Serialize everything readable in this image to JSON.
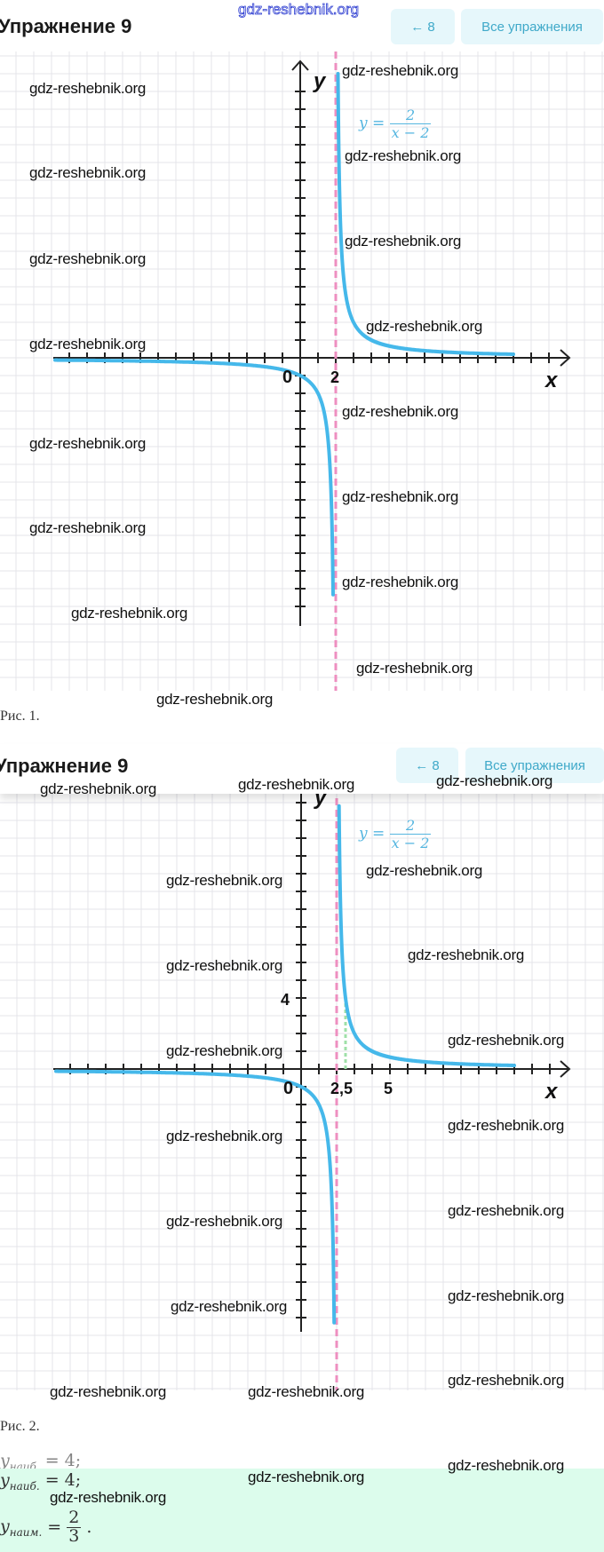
{
  "watermark": "gdz-reshebnik.org",
  "header": {
    "title": "Упражнение 9",
    "prev_label": "← 8",
    "all_label": "Все упражнения"
  },
  "figure1": {
    "caption": "Рис. 1.",
    "function_label": {
      "lhs": "y =",
      "num": "2",
      "den": "x − 2"
    },
    "x_axis_label": "x",
    "y_axis_label": "y",
    "origin_label": "0",
    "x_tick_labels": [
      "2"
    ],
    "asymptote_x": 2,
    "colors": {
      "curve": "#45b8ea",
      "asymptote": "#ee8fc0",
      "grid": "#e6e6ea",
      "axis": "#222222"
    }
  },
  "figure2": {
    "caption": "Рис. 2.",
    "function_label": {
      "lhs": "y =",
      "num": "2",
      "den": "x − 2"
    },
    "x_axis_label": "x",
    "y_axis_label": "y",
    "origin_label": "0",
    "x_tick_labels": [
      "2,5",
      "5"
    ],
    "y_tick_labels": [
      "4"
    ],
    "asymptote_x": 2,
    "highlight_x": 2.5,
    "colors": {
      "curve": "#45b8ea",
      "asymptote": "#ee8fc0",
      "highlight": "#9fe0a8"
    }
  },
  "answer": {
    "max_label": "y",
    "max_sub": "наиб.",
    "max_value": "= 4;",
    "min_label": "y",
    "min_sub": "наим.",
    "min_eq": "=",
    "min_num": "2",
    "min_den": "3",
    "min_end": "."
  },
  "chart_data": [
    {
      "type": "line",
      "title": "y = 2/(x − 2)",
      "function": "2/(x-2)",
      "asymptote": 2,
      "xlim": [
        -13.8,
        12
      ],
      "ylim": [
        -14,
        16.5
      ],
      "xlabel": "x",
      "ylabel": "y"
    },
    {
      "type": "line",
      "title": "y = 2/(x − 2)",
      "function": "2/(x-2)",
      "asymptote": 2,
      "marked_point": [
        2.5,
        4
      ],
      "xlim": [
        -13.8,
        12
      ],
      "ylim": [
        -14.8,
        15
      ],
      "xlabel": "x",
      "ylabel": "y"
    }
  ]
}
